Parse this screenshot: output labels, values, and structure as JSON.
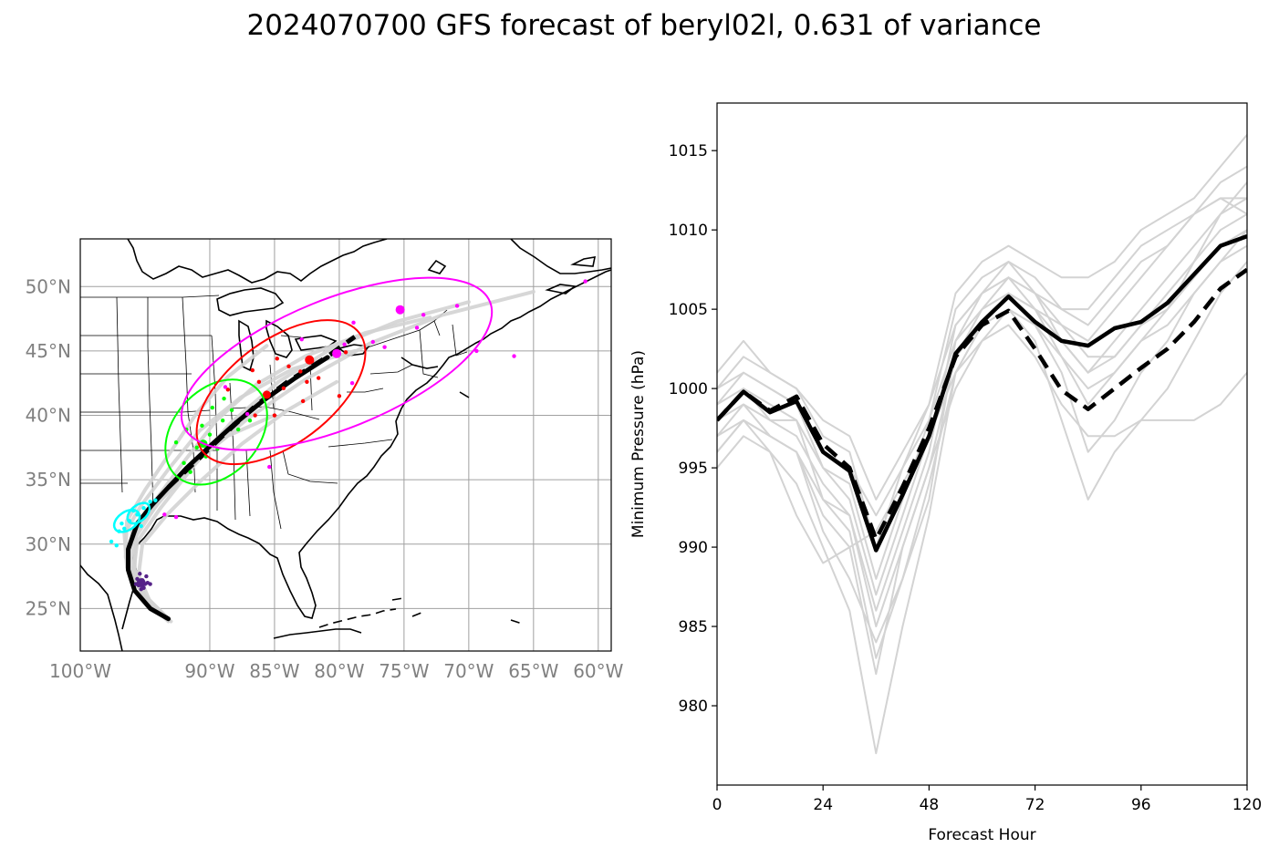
{
  "figure": {
    "title": "2024070700 GFS forecast of beryl02l, 0.631 of variance"
  },
  "colors": {
    "mean": "#000000",
    "ensemble": "#d3d3d3",
    "grid": "#a0a0a0",
    "tick_text": "#808080",
    "ellipse_24": "#00ff00",
    "ellipse_48": "#ff0000",
    "ellipse_72": "#ff00ff",
    "points_0": "#552288",
    "points_12": "#00ffff",
    "points_24": "#00ff00",
    "points_48": "#ff0000",
    "points_72": "#ff00ff"
  },
  "chart_data": [
    {
      "type": "scatter",
      "title": "",
      "projection": "lat-lon map, US east coast",
      "xlim": [
        -100,
        -59
      ],
      "ylim": [
        21.7,
        53.7
      ],
      "x_ticks": [
        -100,
        -90,
        -85,
        -80,
        -75,
        -70,
        -65,
        -60
      ],
      "x_tick_labels": [
        "100°W",
        "90°W",
        "85°W",
        "80°W",
        "75°W",
        "70°W",
        "65°W",
        "60°W"
      ],
      "y_ticks": [
        25,
        30,
        35,
        40,
        45,
        50
      ],
      "y_tick_labels": [
        "25°N",
        "30°N",
        "35°N",
        "40°N",
        "45°N",
        "50°N"
      ],
      "grid": true,
      "mean_track_solid": [
        [
          -93.2,
          24.2
        ],
        [
          -94.6,
          25.0
        ],
        [
          -95.8,
          26.4
        ],
        [
          -96.3,
          28.0
        ],
        [
          -96.3,
          29.6
        ],
        [
          -95.6,
          31.6
        ],
        [
          -94.5,
          33.0
        ],
        [
          -93.2,
          34.4
        ],
        [
          -91.8,
          35.9
        ],
        [
          -90.0,
          37.6
        ],
        [
          -88.0,
          39.4
        ],
        [
          -85.8,
          41.2
        ],
        [
          -83.4,
          42.9
        ],
        [
          -80.9,
          44.5
        ]
      ],
      "mean_track_dashed": [
        [
          -93.2,
          34.4
        ],
        [
          -91.2,
          36.3
        ],
        [
          -88.8,
          38.6
        ],
        [
          -86.4,
          40.8
        ],
        [
          -84.0,
          42.6
        ],
        [
          -81.0,
          44.5
        ],
        [
          -78.8,
          46.1
        ]
      ],
      "ensemble_tracks": [
        [
          [
            -93.0,
            24.0
          ],
          [
            -94.8,
            25.6
          ],
          [
            -95.9,
            27.7
          ],
          [
            -95.6,
            30.2
          ],
          [
            -93.8,
            32.8
          ],
          [
            -91.3,
            36.0
          ],
          [
            -88.4,
            39.4
          ],
          [
            -84.7,
            42.6
          ],
          [
            -80.4,
            45.3
          ],
          [
            -75.5,
            47.3
          ],
          [
            -70.0,
            48.8
          ]
        ],
        [
          [
            -93.6,
            24.4
          ],
          [
            -95.2,
            26.0
          ],
          [
            -96.2,
            28.4
          ],
          [
            -96.0,
            31.0
          ],
          [
            -94.2,
            33.4
          ],
          [
            -92.0,
            36.4
          ],
          [
            -89.5,
            39.6
          ],
          [
            -86.4,
            42.4
          ],
          [
            -82.6,
            44.6
          ],
          [
            -78.0,
            46.4
          ],
          [
            -73.0,
            47.6
          ]
        ],
        [
          [
            -93.4,
            24.2
          ],
          [
            -95.0,
            25.8
          ],
          [
            -96.4,
            28.2
          ],
          [
            -96.6,
            30.8
          ],
          [
            -95.3,
            33.0
          ],
          [
            -93.2,
            35.8
          ],
          [
            -90.8,
            38.8
          ],
          [
            -87.6,
            41.4
          ],
          [
            -83.6,
            43.6
          ],
          [
            -78.8,
            45.0
          ]
        ],
        [
          [
            -93.1,
            24.1
          ],
          [
            -94.6,
            25.5
          ],
          [
            -95.5,
            27.6
          ],
          [
            -95.2,
            30.0
          ],
          [
            -93.2,
            32.4
          ],
          [
            -90.6,
            35.0
          ],
          [
            -87.5,
            37.8
          ],
          [
            -84.0,
            40.4
          ],
          [
            -80.2,
            42.6
          ]
        ],
        [
          [
            -93.5,
            24.5
          ],
          [
            -95.3,
            26.3
          ],
          [
            -96.5,
            29.0
          ],
          [
            -96.4,
            31.8
          ],
          [
            -95.0,
            34.2
          ],
          [
            -93.0,
            37.2
          ],
          [
            -91.0,
            40.2
          ],
          [
            -88.6,
            43.0
          ],
          [
            -85.6,
            45.4
          ]
        ],
        [
          [
            -93.2,
            24.0
          ],
          [
            -94.9,
            25.7
          ],
          [
            -95.8,
            28.0
          ],
          [
            -95.7,
            30.6
          ],
          [
            -94.0,
            33.2
          ],
          [
            -91.6,
            36.0
          ],
          [
            -88.6,
            38.4
          ],
          [
            -85.0,
            40.0
          ]
        ],
        [
          [
            -93.3,
            24.3
          ],
          [
            -95.1,
            26.1
          ],
          [
            -96.0,
            28.6
          ],
          [
            -95.6,
            31.2
          ],
          [
            -93.6,
            33.6
          ],
          [
            -90.8,
            36.6
          ],
          [
            -87.0,
            39.8
          ],
          [
            -82.6,
            42.8
          ],
          [
            -77.6,
            45.6
          ],
          [
            -72.0,
            47.8
          ],
          [
            -65.0,
            49.6
          ]
        ]
      ],
      "ellipses": [
        {
          "hour": 24,
          "center": [
            -89.5,
            38.7
          ],
          "semi_major_deg": 4.6,
          "semi_minor_deg": 3.3,
          "angle_deg": 48
        },
        {
          "hour": 48,
          "center": [
            -84.5,
            41.8
          ],
          "semi_major_deg": 7.6,
          "semi_minor_deg": 4.0,
          "angle_deg": 37
        },
        {
          "hour": 72,
          "center": [
            -80.2,
            44.0
          ],
          "semi_major_deg": 12.8,
          "semi_minor_deg": 5.0,
          "angle_deg": 22
        }
      ],
      "small_ellipses_12h": [
        {
          "center": [
            -96.4,
            31.8
          ],
          "semi_major_deg": 1.1,
          "semi_minor_deg": 0.7,
          "angle_deg": 35
        },
        {
          "center": [
            -95.5,
            32.4
          ],
          "semi_major_deg": 1.0,
          "semi_minor_deg": 0.6,
          "angle_deg": 40
        }
      ],
      "points": {
        "hour_0": [
          [
            -95.2,
            27.2
          ],
          [
            -95.5,
            26.8
          ],
          [
            -94.9,
            27.5
          ],
          [
            -95.3,
            26.5
          ],
          [
            -95.0,
            26.9
          ],
          [
            -95.6,
            27.3
          ],
          [
            -94.8,
            27.0
          ],
          [
            -95.4,
            27.7
          ],
          [
            -95.1,
            26.6
          ],
          [
            -95.7,
            26.9
          ],
          [
            -94.6,
            26.9
          ]
        ],
        "hour_12": [
          [
            -96.6,
            31.2
          ],
          [
            -96.2,
            31.8
          ],
          [
            -95.6,
            32.3
          ],
          [
            -95.1,
            32.8
          ],
          [
            -94.6,
            33.3
          ],
          [
            -97.0,
            31.0
          ],
          [
            -96.8,
            31.6
          ],
          [
            -95.9,
            32.6
          ],
          [
            -94.2,
            33.4
          ],
          [
            -97.6,
            30.2
          ],
          [
            -97.2,
            29.9
          ],
          [
            -95.3,
            31.4
          ]
        ],
        "hour_24": [
          [
            -92.0,
            36.3
          ],
          [
            -91.0,
            37.5
          ],
          [
            -90.0,
            38.5
          ],
          [
            -89.0,
            39.6
          ],
          [
            -88.3,
            40.4
          ],
          [
            -91.5,
            35.6
          ],
          [
            -89.4,
            37.4
          ],
          [
            -90.6,
            39.2
          ],
          [
            -87.8,
            38.9
          ],
          [
            -88.9,
            41.3
          ],
          [
            -92.6,
            37.9
          ],
          [
            -90.3,
            36.8
          ],
          [
            -89.8,
            40.6
          ],
          [
            -86.9,
            39.6
          ],
          [
            -91.8,
            38.9
          ]
        ],
        "hour_48": [
          [
            -86.5,
            40.0
          ],
          [
            -85.6,
            41.6
          ],
          [
            -84.3,
            42.1
          ],
          [
            -83.0,
            43.4
          ],
          [
            -82.1,
            44.2
          ],
          [
            -84.8,
            44.4
          ],
          [
            -82.8,
            41.1
          ],
          [
            -86.2,
            42.6
          ],
          [
            -83.9,
            43.8
          ],
          [
            -81.6,
            42.9
          ],
          [
            -80.0,
            41.5
          ],
          [
            -79.5,
            44.9
          ],
          [
            -85.0,
            40.0
          ],
          [
            -88.6,
            42.0
          ],
          [
            -86.7,
            43.5
          ],
          [
            -82.5,
            42.6
          ]
        ],
        "hour_72": [
          [
            -80.2,
            44.8
          ],
          [
            -75.3,
            48.1
          ],
          [
            -78.9,
            47.2
          ],
          [
            -73.5,
            47.8
          ],
          [
            -70.9,
            48.5
          ],
          [
            -79.0,
            42.5
          ],
          [
            -76.5,
            45.3
          ],
          [
            -74.0,
            46.8
          ],
          [
            -88.8,
            42.2
          ],
          [
            -87.1,
            40.1
          ],
          [
            -82.9,
            45.9
          ],
          [
            -85.4,
            36.0
          ],
          [
            -92.6,
            32.1
          ],
          [
            -93.5,
            32.3
          ],
          [
            -69.4,
            45.0
          ],
          [
            -66.5,
            44.6
          ],
          [
            -61.0,
            50.4
          ],
          [
            -77.4,
            45.7
          ],
          [
            -79.6,
            45.5
          ]
        ]
      }
    },
    {
      "type": "line",
      "title": "",
      "xlabel": "Forecast Hour",
      "ylabel": "Minimum Pressure (hPa)",
      "xlim": [
        0,
        120
      ],
      "ylim": [
        975,
        1018
      ],
      "x_ticks": [
        0,
        24,
        48,
        72,
        96,
        120
      ],
      "x_tick_labels": [
        "0",
        "24",
        "48",
        "72",
        "96",
        "120"
      ],
      "y_ticks": [
        980,
        985,
        990,
        995,
        1000,
        1005,
        1010,
        1015
      ],
      "y_tick_labels": [
        "980",
        "985",
        "990",
        "995",
        "1000",
        "1005",
        "1010",
        "1015"
      ],
      "hours": [
        0,
        6,
        12,
        18,
        24,
        30,
        36,
        42,
        48,
        54,
        60,
        66,
        72,
        78,
        84,
        90,
        96,
        102,
        108,
        114,
        120
      ],
      "series": [
        {
          "style": "mean-solid",
          "values": [
            998,
            999.8,
            998.5,
            999.2,
            996.0,
            994.8,
            989.8,
            993.3,
            997.0,
            1002.2,
            1004.2,
            1005.8,
            1004.2,
            1003.0,
            1002.7,
            1003.8,
            1004.2,
            1005.4,
            1007.2,
            1009.0,
            1009.6
          ]
        },
        {
          "style": "mean-dashed",
          "values": [
            998,
            999.8,
            998.6,
            999.5,
            996.5,
            995.0,
            990.5,
            993.8,
            997.5,
            1002.0,
            1004.0,
            1004.9,
            1002.5,
            999.9,
            998.7,
            1000.0,
            1001.3,
            1002.5,
            1004.2,
            1006.3,
            1007.5
          ]
        },
        {
          "style": "ensemble",
          "values": [
            995,
            997,
            996,
            994,
            990,
            986,
            977,
            985,
            992,
            1001,
            1004,
            1006,
            1004,
            1001,
            996,
            998,
            1001,
            1003,
            1006,
            1008,
            1010
          ]
        },
        {
          "style": "ensemble",
          "values": [
            996,
            998,
            996,
            992,
            989,
            990,
            982,
            990,
            995,
            1000,
            1003,
            1005,
            1003,
            998,
            993,
            996,
            998,
            1000,
            1003,
            1006,
            1008
          ]
        },
        {
          "style": "ensemble",
          "values": [
            997,
            998,
            997,
            996,
            991,
            988,
            984,
            988,
            993,
            1003,
            1006,
            1007,
            1005,
            1002,
            999,
            1001,
            1003,
            1005,
            1008,
            1011,
            1012
          ]
        },
        {
          "style": "ensemble",
          "values": [
            999,
            1000,
            999,
            998,
            993,
            992,
            986,
            991,
            996,
            1004,
            1006,
            1008,
            1006,
            1003,
            1001,
            1003,
            1005,
            1007,
            1009,
            1011,
            1013
          ]
        },
        {
          "style": "ensemble",
          "values": [
            1000,
            1001,
            1000,
            999,
            995,
            994,
            988,
            993,
            998,
            1005,
            1007,
            1008,
            1007,
            1005,
            1004,
            1006,
            1008,
            1009,
            1011,
            1013,
            1014
          ]
        },
        {
          "style": "ensemble",
          "values": [
            1001,
            1003,
            1001,
            1000,
            997,
            996,
            990,
            995,
            999,
            1006,
            1008,
            1009,
            1008,
            1007,
            1007,
            1008,
            1010,
            1011,
            1012,
            1014,
            1016
          ]
        },
        {
          "style": "ensemble",
          "values": [
            998,
            1000,
            998,
            997,
            994,
            992,
            985,
            990,
            995,
            1002,
            1004,
            1005,
            1004,
            1002,
            1000,
            1001,
            1003,
            1004,
            1006,
            1008,
            1009
          ]
        },
        {
          "style": "ensemble",
          "values": [
            997,
            999,
            997,
            996,
            993,
            991,
            983,
            988,
            994,
            1001,
            1003,
            1004,
            1002,
            999,
            997,
            997,
            998,
            998,
            998,
            999,
            1001
          ]
        },
        {
          "style": "ensemble",
          "values": [
            999,
            1001,
            1000,
            999,
            996,
            995,
            992,
            995,
            998,
            1003,
            1005,
            1006,
            1005,
            1004,
            1003,
            1005,
            1007,
            1009,
            1011,
            1012,
            1011
          ]
        },
        {
          "style": "ensemble",
          "values": [
            998,
            999,
            998,
            998,
            995,
            993,
            987,
            992,
            997,
            1002,
            1005,
            1007,
            1006,
            1004,
            1002,
            1002,
            1004,
            1006,
            1008,
            1010,
            1011
          ]
        },
        {
          "style": "ensemble",
          "values": [
            996,
            998,
            997,
            996,
            992,
            990,
            991,
            994,
            997,
            1001,
            1004,
            1006,
            1005,
            1003,
            1001,
            1002,
            1004,
            1005,
            1007,
            1009,
            1010
          ]
        },
        {
          "style": "ensemble",
          "values": [
            1000,
            1002,
            1001,
            1000,
            998,
            997,
            993,
            996,
            999,
            1004,
            1006,
            1007,
            1006,
            1005,
            1005,
            1007,
            1009,
            1010,
            1011,
            1012,
            1012
          ]
        }
      ]
    }
  ]
}
